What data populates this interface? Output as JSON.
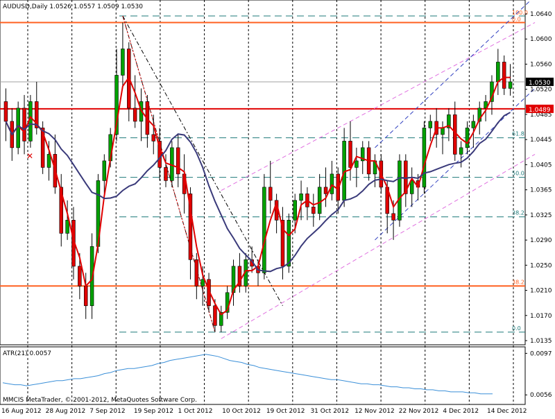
{
  "header": {
    "title": "AUDUSD,Daily  1.0526 1.0557 1.0509 1.0530"
  },
  "copyright": "MMCIS MetaTrader, © 2001-2012, MetaQuotes Software Corp.",
  "colors": {
    "up_candle": "#00a000",
    "down_candle": "#e00000",
    "fast_ma": "#e00000",
    "slow_ma": "#3a3a7a",
    "atr": "#3a8fd8",
    "horizontal_level": "#ff6020",
    "fib_dash": "#1e7a7a",
    "channel_outer": "#e070e0",
    "channel_inner": "#3040c0",
    "price_label_bg": "#000000",
    "red_label_bg": "#e00000"
  },
  "chart_data": [
    {
      "type": "candlestick",
      "title": "AUDUSD,Daily",
      "ohlc": {
        "open": 1.0526,
        "high": 1.0557,
        "low": 1.0509,
        "close": 1.053
      },
      "ylim": [
        1.0135,
        1.065
      ],
      "y_ticks": [
        "1.0640",
        "1.0600",
        "1.0560",
        "1.0520",
        "1.0485",
        "1.0445",
        "1.0405",
        "1.0365",
        "1.0325",
        "1.0290",
        "1.0250",
        "1.0210",
        "1.0170",
        "1.0135"
      ],
      "x_ticks": [
        "16 Aug 2012",
        "28 Aug 2012",
        "7 Sep 2012",
        "19 Sep 2012",
        "1 Oct 2012",
        "10 Oct 2012",
        "19 Oct 2012",
        "31 Oct 2012",
        "12 Nov 2012",
        "22 Nov 2012",
        "4 Dec 2012",
        "14 Dec 2012"
      ],
      "current_price_label": "1.0530",
      "red_line_label": "1.0489",
      "candles": [
        [
          1.05,
          1.052,
          1.044,
          1.047
        ],
        [
          1.047,
          1.049,
          1.041,
          1.043
        ],
        [
          1.043,
          1.05,
          1.042,
          1.049
        ],
        [
          1.049,
          1.051,
          1.042,
          1.044
        ],
        [
          1.044,
          1.051,
          1.043,
          1.05
        ],
        [
          1.05,
          1.053,
          1.045,
          1.046
        ],
        [
          1.046,
          1.047,
          1.039,
          1.04
        ],
        [
          1.04,
          1.044,
          1.038,
          1.042
        ],
        [
          1.042,
          1.045,
          1.036,
          1.037
        ],
        [
          1.037,
          1.039,
          1.028,
          1.03
        ],
        [
          1.03,
          1.035,
          1.029,
          1.032
        ],
        [
          1.032,
          1.034,
          1.023,
          1.025
        ],
        [
          1.025,
          1.027,
          1.02,
          1.022
        ],
        [
          1.022,
          1.024,
          1.017,
          1.019
        ],
        [
          1.019,
          1.03,
          1.017,
          1.028
        ],
        [
          1.028,
          1.039,
          1.027,
          1.038
        ],
        [
          1.038,
          1.042,
          1.036,
          1.041
        ],
        [
          1.041,
          1.046,
          1.04,
          1.045
        ],
        [
          1.045,
          1.058,
          1.044,
          1.054
        ],
        [
          1.054,
          1.062,
          1.052,
          1.058
        ],
        [
          1.058,
          1.059,
          1.047,
          1.049
        ],
        [
          1.049,
          1.054,
          1.046,
          1.047
        ],
        [
          1.047,
          1.052,
          1.044,
          1.05
        ],
        [
          1.05,
          1.051,
          1.043,
          1.045
        ],
        [
          1.045,
          1.048,
          1.042,
          1.044
        ],
        [
          1.044,
          1.046,
          1.038,
          1.04
        ],
        [
          1.04,
          1.042,
          1.037,
          1.038
        ],
        [
          1.038,
          1.044,
          1.037,
          1.043
        ],
        [
          1.043,
          1.045,
          1.037,
          1.039
        ],
        [
          1.039,
          1.042,
          1.033,
          1.036
        ],
        [
          1.036,
          1.037,
          1.023,
          1.026
        ],
        [
          1.026,
          1.027,
          1.02,
          1.022
        ],
        [
          1.022,
          1.025,
          1.019,
          1.023
        ],
        [
          1.023,
          1.024,
          1.018,
          1.019
        ],
        [
          1.019,
          1.02,
          1.015,
          1.016
        ],
        [
          1.016,
          1.019,
          1.015,
          1.018
        ],
        [
          1.018,
          1.022,
          1.017,
          1.021
        ],
        [
          1.021,
          1.026,
          1.019,
          1.025
        ],
        [
          1.025,
          1.027,
          1.021,
          1.022
        ],
        [
          1.022,
          1.027,
          1.021,
          1.026
        ],
        [
          1.026,
          1.028,
          1.024,
          1.025
        ],
        [
          1.025,
          1.026,
          1.022,
          1.024
        ],
        [
          1.024,
          1.039,
          1.023,
          1.037
        ],
        [
          1.037,
          1.041,
          1.033,
          1.035
        ],
        [
          1.035,
          1.036,
          1.03,
          1.032
        ],
        [
          1.032,
          1.034,
          1.023,
          1.025
        ],
        [
          1.025,
          1.033,
          1.024,
          1.032
        ],
        [
          1.032,
          1.036,
          1.03,
          1.035
        ],
        [
          1.035,
          1.038,
          1.032,
          1.036
        ],
        [
          1.036,
          1.037,
          1.032,
          1.034
        ],
        [
          1.034,
          1.036,
          1.031,
          1.033
        ],
        [
          1.033,
          1.039,
          1.032,
          1.037
        ],
        [
          1.037,
          1.04,
          1.034,
          1.036
        ],
        [
          1.036,
          1.041,
          1.035,
          1.039
        ],
        [
          1.039,
          1.04,
          1.033,
          1.035
        ],
        [
          1.035,
          1.046,
          1.034,
          1.044
        ],
        [
          1.044,
          1.047,
          1.038,
          1.04
        ],
        [
          1.04,
          1.043,
          1.037,
          1.041
        ],
        [
          1.041,
          1.044,
          1.039,
          1.043
        ],
        [
          1.043,
          1.044,
          1.038,
          1.039
        ],
        [
          1.039,
          1.042,
          1.037,
          1.041
        ],
        [
          1.041,
          1.042,
          1.036,
          1.037
        ],
        [
          1.037,
          1.038,
          1.03,
          1.033
        ],
        [
          1.033,
          1.035,
          1.029,
          1.032
        ],
        [
          1.032,
          1.042,
          1.031,
          1.041
        ],
        [
          1.041,
          1.042,
          1.034,
          1.036
        ],
        [
          1.036,
          1.04,
          1.034,
          1.038
        ],
        [
          1.038,
          1.039,
          1.035,
          1.037
        ],
        [
          1.037,
          1.047,
          1.036,
          1.046
        ],
        [
          1.046,
          1.048,
          1.044,
          1.047
        ],
        [
          1.047,
          1.049,
          1.043,
          1.045
        ],
        [
          1.045,
          1.047,
          1.042,
          1.046
        ],
        [
          1.046,
          1.049,
          1.044,
          1.048
        ],
        [
          1.048,
          1.05,
          1.041,
          1.042
        ],
        [
          1.042,
          1.044,
          1.04,
          1.043
        ],
        [
          1.043,
          1.047,
          1.042,
          1.046
        ],
        [
          1.046,
          1.048,
          1.043,
          1.047
        ],
        [
          1.047,
          1.05,
          1.045,
          1.049
        ],
        [
          1.049,
          1.051,
          1.047,
          1.05
        ],
        [
          1.05,
          1.054,
          1.048,
          1.053
        ],
        [
          1.053,
          1.058,
          1.051,
          1.056
        ],
        [
          1.056,
          1.057,
          1.051,
          1.052
        ],
        [
          1.052,
          1.0557,
          1.0509,
          1.053
        ]
      ]
    },
    {
      "type": "line",
      "title": "ATR(21) 0.0057",
      "ylim": [
        0.005,
        0.01
      ],
      "y_ticks": [
        "0.0097",
        "0.0056"
      ],
      "values": [
        0.0068,
        0.0067,
        0.0066,
        0.0066,
        0.0065,
        0.0066,
        0.0067,
        0.0068,
        0.0069,
        0.007,
        0.007,
        0.0071,
        0.0072,
        0.0072,
        0.0073,
        0.0074,
        0.0075,
        0.0077,
        0.0078,
        0.008,
        0.0081,
        0.0082,
        0.0082,
        0.0083,
        0.0084,
        0.0085,
        0.0087,
        0.0088,
        0.009,
        0.0091,
        0.0092,
        0.0093,
        0.0094,
        0.0095,
        0.0096,
        0.0095,
        0.0094,
        0.0092,
        0.009,
        0.0089,
        0.0088,
        0.0086,
        0.0085,
        0.0083,
        0.0082,
        0.0081,
        0.008,
        0.0079,
        0.0078,
        0.0077,
        0.0076,
        0.0075,
        0.0074,
        0.0073,
        0.0072,
        0.0071,
        0.0071,
        0.007,
        0.0069,
        0.0068,
        0.0067,
        0.0067,
        0.0066,
        0.0066,
        0.0065,
        0.0064,
        0.0064,
        0.0063,
        0.0063,
        0.0062,
        0.0062,
        0.0061,
        0.0061,
        0.006,
        0.006,
        0.0059,
        0.0059,
        0.0059,
        0.0058,
        0.0058,
        0.0057,
        0.0057,
        0.0057
      ]
    }
  ],
  "levels": {
    "fib_top": [
      {
        "label": "100.0",
        "price": 1.063
      },
      {
        "label": "0.0",
        "price": 1.062
      }
    ],
    "fib_dashed": [
      {
        "label": "61.8",
        "price": 1.0445
      },
      {
        "label": "50.0",
        "price": 1.0385
      },
      {
        "label": "38.2",
        "price": 1.0325
      },
      {
        "label": "0.0",
        "price": 1.015
      }
    ],
    "red_line": 1.0489,
    "orange_lines": [
      {
        "price": 1.062,
        "label": ""
      },
      {
        "price": 1.022,
        "label": "38.2"
      }
    ],
    "gray_line": 1.053
  }
}
